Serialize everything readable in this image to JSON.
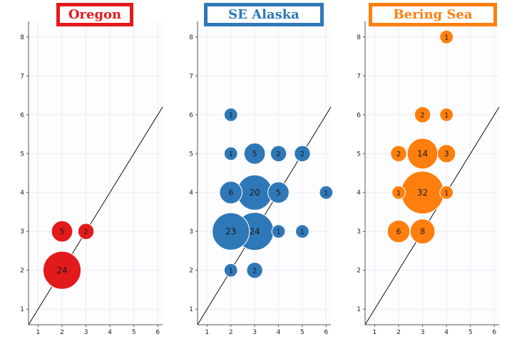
{
  "chart_data": [
    {
      "type": "scatter",
      "title": "Oregon",
      "color": "#e31a1c",
      "xlim": [
        0.6,
        6.2
      ],
      "ylim": [
        0.6,
        8.4
      ],
      "xticks": [
        1,
        2,
        3,
        4,
        5,
        6
      ],
      "yticks": [
        1,
        2,
        3,
        4,
        5,
        6,
        7,
        8
      ],
      "grid": true,
      "reference_line": "y = x",
      "points": [
        {
          "x": 2,
          "y": 2,
          "count": 24
        },
        {
          "x": 2,
          "y": 3,
          "count": 5
        },
        {
          "x": 3,
          "y": 3,
          "count": 2
        }
      ]
    },
    {
      "type": "scatter",
      "title": "SE Alaska",
      "color": "#2f78b7",
      "xlim": [
        0.6,
        6.2
      ],
      "ylim": [
        0.6,
        8.4
      ],
      "xticks": [
        1,
        2,
        3,
        4,
        5,
        6
      ],
      "yticks": [
        1,
        2,
        3,
        4,
        5,
        6,
        7,
        8
      ],
      "grid": true,
      "reference_line": "y = x",
      "points": [
        {
          "x": 2,
          "y": 6,
          "count": 1
        },
        {
          "x": 2,
          "y": 5,
          "count": 1
        },
        {
          "x": 3,
          "y": 5,
          "count": 5
        },
        {
          "x": 4,
          "y": 5,
          "count": 2
        },
        {
          "x": 5,
          "y": 5,
          "count": 2
        },
        {
          "x": 2,
          "y": 4,
          "count": 6
        },
        {
          "x": 3,
          "y": 4,
          "count": 20
        },
        {
          "x": 4,
          "y": 4,
          "count": 5
        },
        {
          "x": 6,
          "y": 4,
          "count": 1
        },
        {
          "x": 2,
          "y": 3,
          "count": 23
        },
        {
          "x": 3,
          "y": 3,
          "count": 24
        },
        {
          "x": 4,
          "y": 3,
          "count": 1
        },
        {
          "x": 5,
          "y": 3,
          "count": 1
        },
        {
          "x": 2,
          "y": 2,
          "count": 1
        },
        {
          "x": 3,
          "y": 2,
          "count": 2
        }
      ]
    },
    {
      "type": "scatter",
      "title": "Bering Sea",
      "color": "#ff7f0e",
      "xlim": [
        0.6,
        6.2
      ],
      "ylim": [
        0.6,
        8.4
      ],
      "xticks": [
        1,
        2,
        3,
        4,
        5,
        6
      ],
      "yticks": [
        1,
        2,
        3,
        4,
        5,
        6,
        7,
        8
      ],
      "grid": true,
      "reference_line": "y = x",
      "points": [
        {
          "x": 4,
          "y": 8,
          "count": 1
        },
        {
          "x": 3,
          "y": 6,
          "count": 2
        },
        {
          "x": 4,
          "y": 6,
          "count": 1
        },
        {
          "x": 2,
          "y": 5,
          "count": 2
        },
        {
          "x": 3,
          "y": 5,
          "count": 14
        },
        {
          "x": 4,
          "y": 5,
          "count": 3
        },
        {
          "x": 2,
          "y": 4,
          "count": 1
        },
        {
          "x": 3,
          "y": 4,
          "count": 32
        },
        {
          "x": 4,
          "y": 4,
          "count": 1
        },
        {
          "x": 2,
          "y": 3,
          "count": 6
        },
        {
          "x": 3,
          "y": 3,
          "count": 8
        }
      ]
    }
  ]
}
